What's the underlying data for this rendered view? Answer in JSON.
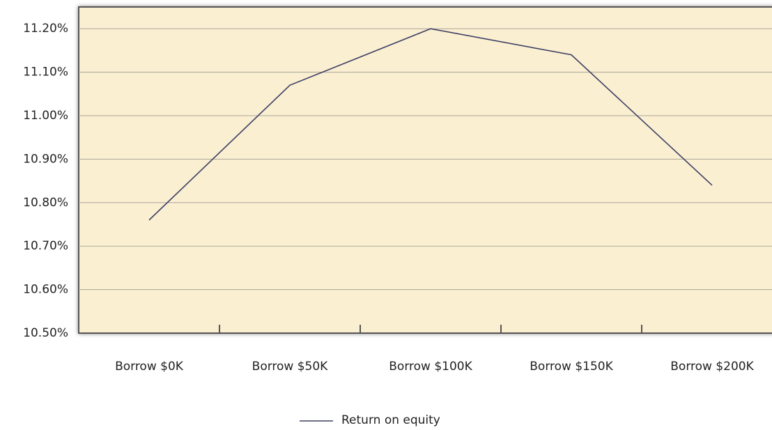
{
  "chart_data": {
    "type": "line",
    "categories": [
      "Borrow $0K",
      "Borrow $50K",
      "Borrow $100K",
      "Borrow $150K",
      "Borrow $200K"
    ],
    "series": [
      {
        "name": "Return on equity",
        "color": "#3d3f66",
        "values": [
          10.76,
          11.07,
          11.2,
          11.14,
          10.84
        ]
      }
    ],
    "ylim": [
      10.5,
      11.25
    ],
    "yticks": [
      {
        "value": 10.5,
        "label": "10.50%"
      },
      {
        "value": 10.6,
        "label": "10.60%"
      },
      {
        "value": 10.7,
        "label": "10.70%"
      },
      {
        "value": 10.8,
        "label": "10.80%"
      },
      {
        "value": 10.9,
        "label": "10.90%"
      },
      {
        "value": 11.0,
        "label": "11.00%"
      },
      {
        "value": 11.1,
        "label": "11.10%"
      },
      {
        "value": 11.2,
        "label": "11.20%"
      }
    ],
    "grid": true,
    "legend": "bottom"
  }
}
